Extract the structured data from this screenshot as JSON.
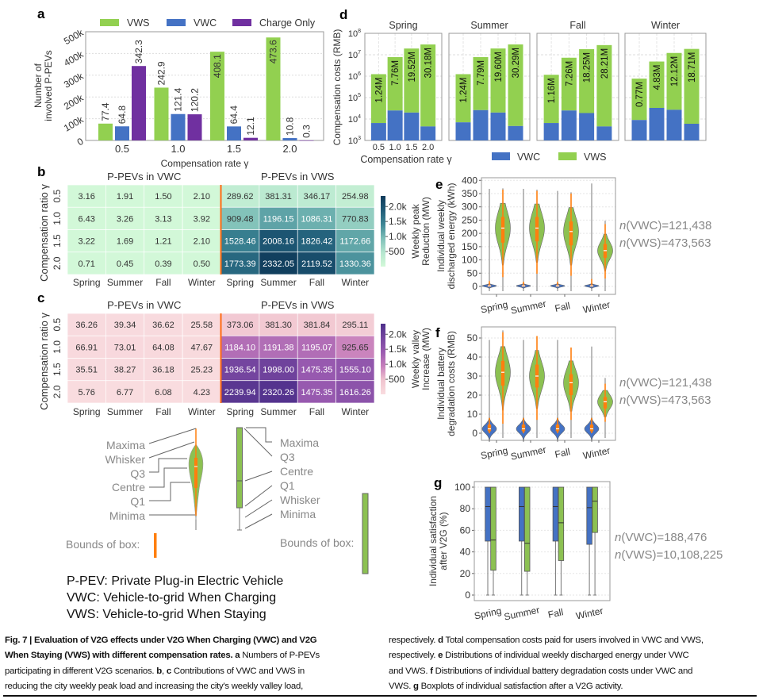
{
  "panel_letters": {
    "a": "a",
    "b": "b",
    "c": "c",
    "d": "d",
    "e": "e",
    "f": "f",
    "g": "g"
  },
  "chart_data": [
    {
      "panel": "a",
      "type": "bar",
      "categories": [
        "0.5",
        "1.0",
        "1.5",
        "2.0"
      ],
      "series": [
        {
          "name": "VWS",
          "color": "#92d050",
          "values": [
            77.4,
            242.9,
            408.1,
            473.6
          ]
        },
        {
          "name": "VWC",
          "color": "#4472c4",
          "values": [
            64.8,
            121.4,
            64.4,
            10.8
          ]
        },
        {
          "name": "Charge Only",
          "color": "#7030a0",
          "values": [
            342.3,
            120.2,
            12.1,
            0.3
          ]
        }
      ],
      "value_unit_k": true,
      "xlabel": "Compensation rate γ",
      "ylabel": [
        "Number of",
        "involved P-PEVs"
      ],
      "yticks": [
        "0",
        "100k",
        "200k",
        "300k",
        "400k",
        "500k"
      ],
      "ylim": [
        0,
        500
      ],
      "grid": true,
      "legend": "top"
    },
    {
      "panel": "d",
      "type": "bar",
      "stacked": true,
      "yscale": "log",
      "ylim": [
        1000,
        100000000
      ],
      "ylabel": "Compensation costs (RMB)",
      "xlabel": "Compensation rate γ",
      "categories": [
        "0.5",
        "1.0",
        "1.5",
        "2.0"
      ],
      "yticks": [
        {
          "base": "10",
          "exp": "3"
        },
        {
          "base": "10",
          "exp": "4"
        },
        {
          "base": "10",
          "exp": "5"
        },
        {
          "base": "10",
          "exp": "6"
        },
        {
          "base": "10",
          "exp": "7"
        },
        {
          "base": "10",
          "exp": "8"
        }
      ],
      "legend_entries": [
        {
          "name": "VWC",
          "color": "#4472c4"
        },
        {
          "name": "VWS",
          "color": "#92d050"
        }
      ],
      "legend": "bottom",
      "facets": [
        {
          "title": "Spring",
          "vwc": [
            6500,
            25000,
            20000,
            4500
          ],
          "total": [
            1240000,
            7760000,
            19520000,
            30180000
          ],
          "labels": [
            "1.24M",
            "7.76M",
            "19.52M",
            "30.18M"
          ]
        },
        {
          "title": "Summer",
          "vwc": [
            7000,
            26000,
            20000,
            4700
          ],
          "total": [
            1240000,
            7790000,
            19600000,
            30290000
          ],
          "labels": [
            "1.24M",
            "7.79M",
            "19.60M",
            "30.29M"
          ]
        },
        {
          "title": "Fall",
          "vwc": [
            6500,
            25000,
            19000,
            4500
          ],
          "total": [
            1160000,
            7260000,
            18250000,
            28210000
          ],
          "labels": [
            "1.16M",
            "7.26M",
            "18.25M",
            "28.21M"
          ]
        },
        {
          "title": "Winter",
          "vwc": [
            9000,
            33000,
            27000,
            6000
          ],
          "total": [
            770000,
            4830000,
            12120000,
            18710000
          ],
          "labels": [
            "0.77M",
            "4.83M",
            "12.12M",
            "18.71M"
          ]
        }
      ]
    },
    {
      "panel": "b",
      "type": "heatmap",
      "ylabel": "Compensation ratio γ",
      "rows": [
        "0.5",
        "1.0",
        "1.5",
        "2.0"
      ],
      "cols": [
        "Spring",
        "Summer",
        "Fall",
        "Winter"
      ],
      "left_title": "P-PEVs in VWC",
      "right_title": "P-PEVs in VWS",
      "vwc": [
        [
          "3.16",
          "1.91",
          "1.50",
          "2.10"
        ],
        [
          "6.43",
          "3.26",
          "3.13",
          "3.92"
        ],
        [
          "3.22",
          "1.69",
          "1.21",
          "2.10"
        ],
        [
          "0.71",
          "0.45",
          "0.39",
          "0.50"
        ]
      ],
      "vws": [
        [
          "289.62",
          "381.31",
          "346.17",
          "254.98"
        ],
        [
          "909.48",
          "1196.15",
          "1086.31",
          "770.83"
        ],
        [
          "1528.46",
          "2008.16",
          "1826.42",
          "1172.66"
        ],
        [
          "1773.39",
          "2332.05",
          "2119.52",
          "1330.36"
        ]
      ],
      "colorbar_label": [
        "Weekly peak",
        "Reduction (MW)"
      ],
      "colorbar_ticks": [
        {
          "value": 2000,
          "label": "2.0k"
        },
        {
          "value": 1500,
          "label": "1.5k"
        },
        {
          "value": 1000,
          "label": "1.0k"
        },
        {
          "value": 500,
          "label": "500"
        }
      ],
      "colormap": [
        "#d2f8d8",
        "#b5e6cf",
        "#7dbfb8",
        "#3d8695",
        "#1f5b77",
        "#0f3a5a"
      ],
      "divider_color": "#ff6a13"
    },
    {
      "panel": "c",
      "type": "heatmap",
      "ylabel": "Compensation ratio γ",
      "rows": [
        "0.5",
        "1.0",
        "1.5",
        "2.0"
      ],
      "cols": [
        "Spring",
        "Summer",
        "Fall",
        "Winter"
      ],
      "left_title": "P-PEVs in VWC",
      "right_title": "P-PEVs in VWS",
      "vwc": [
        [
          "36.26",
          "39.34",
          "36.62",
          "25.58"
        ],
        [
          "66.91",
          "73.01",
          "64.08",
          "47.67"
        ],
        [
          "35.51",
          "38.27",
          "36.18",
          "25.23"
        ],
        [
          "5.76",
          "6.77",
          "6.08",
          "4.23"
        ]
      ],
      "vws": [
        [
          "373.06",
          "381.30",
          "381.84",
          "295.11"
        ],
        [
          "1184.10",
          "1191.38",
          "1195.07",
          "925.65"
        ],
        [
          "1936.54",
          "1998.00",
          "1475.35",
          "1555.10"
        ],
        [
          "2239.94",
          "2320.26",
          "1475.35",
          "1616.26"
        ]
      ],
      "colorbar_label": [
        "Weekly valley",
        "Increase (MW)"
      ],
      "colorbar_ticks": [
        {
          "value": 2000,
          "label": "2.0k"
        },
        {
          "value": 1500,
          "label": "1.5k"
        },
        {
          "value": 1000,
          "label": "1.0k"
        },
        {
          "value": 500,
          "label": "500"
        }
      ],
      "colormap": [
        "#f9dcdf",
        "#f0c4cf",
        "#c77fbc",
        "#9a5bb0",
        "#7546a0",
        "#4d2f8a"
      ],
      "divider_color": "#ff6a13"
    },
    {
      "panel": "e",
      "type": "violin",
      "ylabel": [
        "Individual weekly",
        "discharged energy (kWh)"
      ],
      "ylim": [
        0,
        400
      ],
      "yticks": [
        "0",
        "50",
        "100",
        "150",
        "200",
        "250",
        "300",
        "350",
        "400"
      ],
      "categories": [
        "Spring",
        "Summer",
        "Fall",
        "Winter"
      ],
      "annotations": [
        {
          "prefix": "n",
          "text": "(VWC)=121,438"
        },
        {
          "prefix": "n",
          "text": "(VWS)=473,563"
        }
      ],
      "series": [
        {
          "name": "VWC",
          "color": "#4472c4",
          "stats": [
            {
              "min": 0,
              "lower": 0,
              "q1": 0,
              "median": 2,
              "q3": 5,
              "upper": 20,
              "max": 368
            },
            {
              "min": 0,
              "lower": 0,
              "q1": 0,
              "median": 2,
              "q3": 5,
              "upper": 18,
              "max": 368
            },
            {
              "min": 0,
              "lower": 0,
              "q1": 0,
              "median": 2,
              "q3": 5,
              "upper": 18,
              "max": 360
            },
            {
              "min": 0,
              "lower": 0,
              "q1": 0,
              "median": 2,
              "q3": 5,
              "upper": 28,
              "max": 388
            }
          ]
        },
        {
          "name": "VWS",
          "color": "#8cc152",
          "stats": [
            {
              "min": 0,
              "lower": 35,
              "q1": 165,
              "median": 220,
              "q3": 262,
              "upper": 365,
              "max": 370
            },
            {
              "min": 0,
              "lower": 48,
              "q1": 170,
              "median": 220,
              "q3": 262,
              "upper": 360,
              "max": 365
            },
            {
              "min": 0,
              "lower": 40,
              "q1": 155,
              "median": 207,
              "q3": 245,
              "upper": 350,
              "max": 355
            },
            {
              "min": 0,
              "lower": 30,
              "q1": 108,
              "median": 135,
              "q3": 160,
              "upper": 235,
              "max": 248
            }
          ]
        }
      ],
      "whisker_color": "#ff7f0e"
    },
    {
      "panel": "f",
      "type": "violin",
      "ylabel": [
        "Individual battery",
        "degradation costs (RMB)"
      ],
      "ylim": [
        0,
        50
      ],
      "yticks": [
        "0",
        "10",
        "20",
        "30",
        "40",
        "50"
      ],
      "categories": [
        "Spring",
        "Summer",
        "Fall",
        "Winter"
      ],
      "annotations": [
        {
          "prefix": "n",
          "text": "(VWC)=121,438"
        },
        {
          "prefix": "n",
          "text": "(VWS)=473,563"
        }
      ],
      "series": [
        {
          "name": "VWC",
          "color": "#4472c4",
          "stats": [
            {
              "min": 0,
              "lower": 0,
              "q1": 1,
              "median": 2.3,
              "q3": 4.5,
              "upper": 8,
              "max": 49
            },
            {
              "min": 0,
              "lower": 0,
              "q1": 1,
              "median": 2.3,
              "q3": 4.5,
              "upper": 8,
              "max": 49
            },
            {
              "min": 0,
              "lower": 0,
              "q1": 1,
              "median": 2.3,
              "q3": 4.5,
              "upper": 8,
              "max": 49
            },
            {
              "min": 0,
              "lower": 0,
              "q1": 1,
              "median": 2.3,
              "q3": 4.5,
              "upper": 8,
              "max": 45.5
            }
          ]
        },
        {
          "name": "VWS",
          "color": "#8cc152",
          "stats": [
            {
              "min": 0,
              "lower": 5,
              "q1": 25,
              "median": 32,
              "q3": 38,
              "upper": 53,
              "max": 54
            },
            {
              "min": 0,
              "lower": 7,
              "q1": 24,
              "median": 30,
              "q3": 36,
              "upper": 51,
              "max": 51
            },
            {
              "min": 0,
              "lower": 7,
              "q1": 20,
              "median": 26.5,
              "q3": 31,
              "upper": 45,
              "max": 45
            },
            {
              "min": 0,
              "lower": 6,
              "q1": 13,
              "median": 16.5,
              "q3": 19,
              "upper": 26,
              "max": 29
            }
          ]
        }
      ],
      "whisker_color": "#ff7f0e"
    },
    {
      "panel": "g",
      "type": "box",
      "ylabel": [
        "Individual satisfaction",
        "after V2G (%)"
      ],
      "ylim": [
        0,
        100
      ],
      "yticks": [
        "0",
        "20",
        "40",
        "60",
        "80",
        "100"
      ],
      "categories": [
        "Spring",
        "Summer",
        "Fall",
        "Winter"
      ],
      "annotations": [
        {
          "prefix": "n",
          "text": "(VWC)=188,476"
        },
        {
          "prefix": "n",
          "text": "(VWS)=10,108,225"
        }
      ],
      "series": [
        {
          "name": "VWC",
          "color": "#4472c4",
          "stats": [
            {
              "min": 0,
              "q1": 50,
              "median": 82,
              "q3": 100,
              "max": 100
            },
            {
              "min": 0,
              "q1": 50,
              "median": 82,
              "q3": 100,
              "max": 100
            },
            {
              "min": 0,
              "q1": 50,
              "median": 82,
              "q3": 100,
              "max": 100
            },
            {
              "min": 0,
              "q1": 47,
              "median": 81,
              "q3": 100,
              "max": 100
            }
          ]
        },
        {
          "name": "VWS",
          "color": "#8cc152",
          "stats": [
            {
              "min": 0,
              "q1": 23,
              "median": 51,
              "q3": 100,
              "max": 100
            },
            {
              "min": 0,
              "q1": 22,
              "median": 48,
              "q3": 100,
              "max": 100
            },
            {
              "min": 0,
              "q1": 32,
              "median": 67,
              "q3": 100,
              "max": 100
            },
            {
              "min": 0,
              "q1": 58,
              "median": 87,
              "q3": 100,
              "max": 100
            }
          ]
        }
      ]
    }
  ],
  "key": {
    "violin_labels": [
      "Maxima",
      "Whisker",
      "Q3",
      "Centre",
      "Q1",
      "Minima"
    ],
    "box_labels": [
      "Maxima",
      "Q3",
      "Centre",
      "Q1",
      "Whisker",
      "Minima"
    ],
    "bounds_label": "Bounds of box:",
    "violin_bounds_color": "#ff7f0e",
    "box_bounds_color": "#8cc152"
  },
  "definitions": [
    "P-PEV: Private Plug-in Electric Vehicle",
    "VWC: Vehicle-to-grid When Charging",
    "VWS: Vehicle-to-grid When Staying"
  ],
  "caption": {
    "left": [
      [
        {
          "b": true,
          "t": "Fig. 7 | Evaluation of V2G effects under V2G When Charging (VWC) and V2G"
        }
      ],
      [
        {
          "b": true,
          "t": "When Staying (VWS) with different compensation rates. "
        },
        {
          "b": true,
          "t": "a"
        },
        {
          "b": false,
          "t": " Numbers of P-PEVs"
        }
      ],
      [
        {
          "b": false,
          "t": "participating in different V2G scenarios. "
        },
        {
          "b": true,
          "t": "b"
        },
        {
          "b": false,
          "t": ", "
        },
        {
          "b": true,
          "t": "c"
        },
        {
          "b": false,
          "t": " Contributions of VWC and VWS in"
        }
      ],
      [
        {
          "b": false,
          "t": "reducing the city weekly peak load and increasing the city's weekly valley load,"
        }
      ]
    ],
    "right": [
      [
        {
          "b": false,
          "t": "respectively. "
        },
        {
          "b": true,
          "t": "d"
        },
        {
          "b": false,
          "t": " Total compensation costs paid for users involved in VWC and VWS,"
        }
      ],
      [
        {
          "b": false,
          "t": "respectively. "
        },
        {
          "b": true,
          "t": "e"
        },
        {
          "b": false,
          "t": " Distributions of individual weekly discharged energy under VWC"
        }
      ],
      [
        {
          "b": false,
          "t": "and VWS. "
        },
        {
          "b": true,
          "t": "f"
        },
        {
          "b": false,
          "t": " Distributions of individual battery degradation costs under VWC and"
        }
      ],
      [
        {
          "b": false,
          "t": "VWS. "
        },
        {
          "b": true,
          "t": "g"
        },
        {
          "b": false,
          "t": " Boxplots of individual satisfaction after a V2G activity."
        }
      ]
    ]
  }
}
